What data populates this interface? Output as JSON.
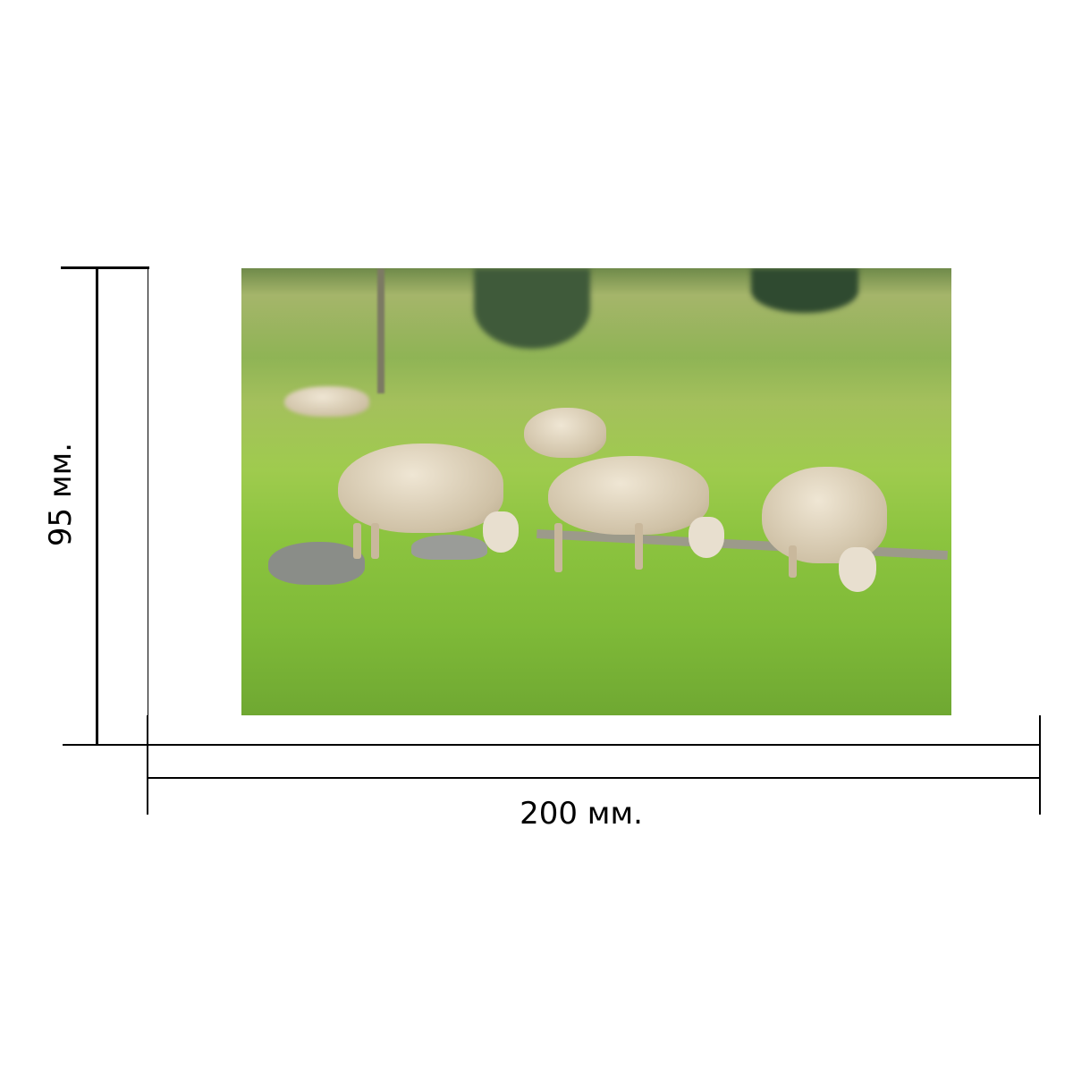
{
  "dimensions": {
    "height_label": "95 мм.",
    "width_label": "200 мм."
  },
  "colors": {
    "lines": "#000000",
    "background": "#ffffff"
  }
}
